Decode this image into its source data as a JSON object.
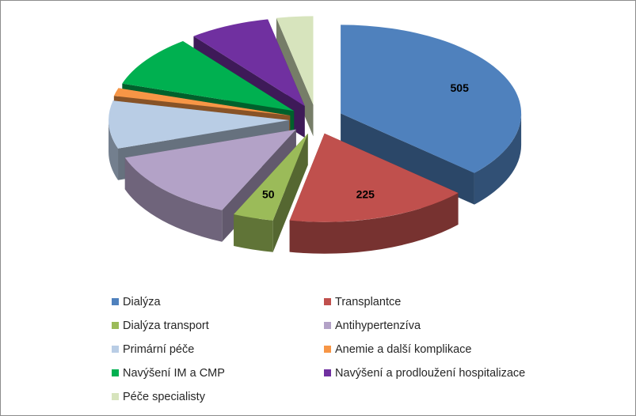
{
  "chart_data": {
    "type": "pie",
    "style": "3d-exploded",
    "title": "",
    "categories": [
      "Dialýza",
      "Transplantce",
      "Dialýza transport",
      "Antihypertenzíva",
      "Primární péče",
      "Anemie a další komplikace",
      "Navýšení IM a CMP",
      "Navýšení a prodloužení hospitalizace",
      "Péče specialisty"
    ],
    "values": [
      505,
      225,
      50,
      180,
      120,
      20,
      130,
      100,
      45
    ],
    "data_labels": [
      "505",
      "225",
      "50",
      "",
      "",
      "",
      "",
      "",
      ""
    ],
    "colors": [
      "#4F81BD",
      "#C0504D",
      "#9BBB59",
      "#B3A2C7",
      "#B9CDE5",
      "#F79646",
      "#00B050",
      "#7030A0",
      "#D7E4BD"
    ],
    "legend_position": "bottom"
  }
}
